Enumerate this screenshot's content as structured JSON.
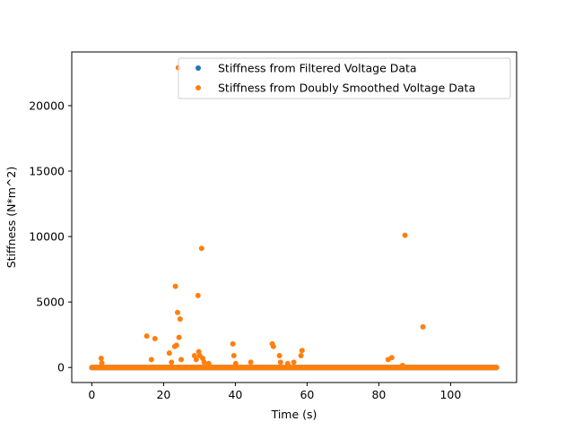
{
  "chart_data": {
    "type": "scatter",
    "title": "",
    "xlabel": "Time (s)",
    "ylabel": "Stiffness (N*m^2)",
    "xlim": [
      -5.6,
      118.4
    ],
    "ylim": [
      -1150,
      24100
    ],
    "xticks": [
      0,
      20,
      40,
      60,
      80,
      100
    ],
    "yticks": [
      0,
      5000,
      10000,
      15000,
      20000
    ],
    "grid": false,
    "legend_position": "top-right",
    "series": [
      {
        "name": "Stiffness from Filtered Voltage Data",
        "color": "#1f77b4",
        "baseline": {
          "x_start": 0,
          "x_end": 112.8,
          "y": 0
        },
        "points": [
          [
            0,
            0
          ],
          [
            112.8,
            0
          ]
        ]
      },
      {
        "name": "Stiffness from Doubly Smoothed Voltage Data",
        "color": "#ff7f0e",
        "baseline": {
          "x_start": 0,
          "x_end": 112.8,
          "y": 0
        },
        "points": [
          [
            2.6,
            700
          ],
          [
            2.8,
            350
          ],
          [
            15.3,
            2400
          ],
          [
            16.6,
            600
          ],
          [
            17.6,
            2200
          ],
          [
            21.6,
            1100
          ],
          [
            22.2,
            400
          ],
          [
            23.1,
            1600
          ],
          [
            23.3,
            6200
          ],
          [
            23.6,
            1700
          ],
          [
            23.9,
            4200
          ],
          [
            24.1,
            22900
          ],
          [
            24.3,
            2300
          ],
          [
            24.6,
            3700
          ],
          [
            24.9,
            600
          ],
          [
            28.6,
            900
          ],
          [
            29.1,
            600
          ],
          [
            29.6,
            5500
          ],
          [
            29.8,
            1200
          ],
          [
            30.1,
            900
          ],
          [
            30.6,
            9100
          ],
          [
            30.9,
            700
          ],
          [
            31.3,
            400
          ],
          [
            32.6,
            300
          ],
          [
            39.3,
            1800
          ],
          [
            39.6,
            900
          ],
          [
            40.1,
            300
          ],
          [
            44.3,
            400
          ],
          [
            50.3,
            1800
          ],
          [
            50.6,
            1600
          ],
          [
            52.3,
            900
          ],
          [
            52.6,
            400
          ],
          [
            54.6,
            300
          ],
          [
            56.3,
            400
          ],
          [
            58.3,
            900
          ],
          [
            58.6,
            1300
          ],
          [
            82.6,
            600
          ],
          [
            83.6,
            750
          ],
          [
            86.6,
            150
          ],
          [
            87.3,
            10100
          ],
          [
            92.3,
            3100
          ]
        ]
      }
    ]
  }
}
